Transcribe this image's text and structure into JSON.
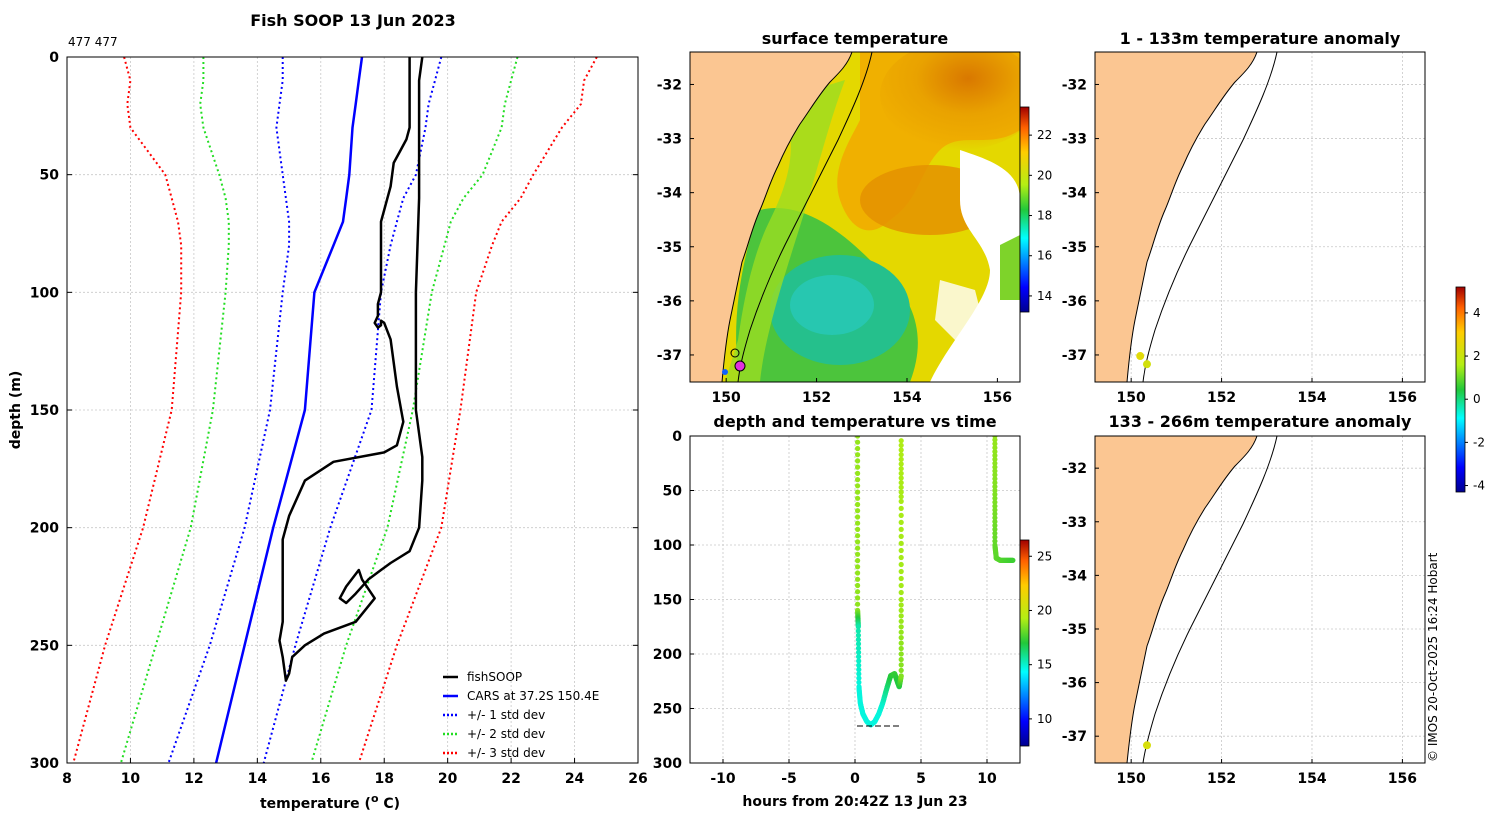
{
  "colors": {
    "fishsoop": "#000000",
    "cars": "#0000ff",
    "std1": "#0000ff",
    "std2": "#22dd22",
    "std3": "#ff0000",
    "land": "#fbc692"
  },
  "chart_data": [
    {
      "id": "profile",
      "type": "line",
      "title": "Fish SOOP 13 Jun 2023",
      "subtitle": "477 477",
      "xlabel": "temperature (",
      "xlabel_sup": "o",
      "xlabel_end": " C)",
      "ylabel": "depth (m)",
      "xlim": [
        8,
        26
      ],
      "ylim": [
        300,
        0
      ],
      "xticks": [
        8,
        10,
        12,
        14,
        16,
        18,
        20,
        22,
        24,
        26
      ],
      "yticks": [
        0,
        50,
        100,
        150,
        200,
        250,
        300
      ],
      "legend": [
        {
          "key": "fishsoop",
          "label": "fishSOOP",
          "style": "solid"
        },
        {
          "key": "cars",
          "label": "CARS at 37.2S 150.4E",
          "style": "solid"
        },
        {
          "key": "std1",
          "label": "+/- 1 std dev",
          "style": "dotted"
        },
        {
          "key": "std2",
          "label": "+/- 2 std dev",
          "style": "dotted"
        },
        {
          "key": "std3",
          "label": "+/- 3 std dev",
          "style": "dotted"
        }
      ],
      "depths": [
        0,
        10,
        20,
        30,
        50,
        60,
        70,
        80,
        100,
        150,
        200,
        250,
        300
      ],
      "series": [
        {
          "name": "CARS",
          "key": "cars",
          "style": "solid",
          "values": [
            17.3,
            17.2,
            17.1,
            17.0,
            16.9,
            16.8,
            16.7,
            16.4,
            15.8,
            15.5,
            14.5,
            13.6,
            12.7
          ]
        },
        {
          "name": "CARS +1 std",
          "key": "std1",
          "style": "dotted",
          "values": [
            19.8,
            19.6,
            19.4,
            19.3,
            19.0,
            18.6,
            18.4,
            18.2,
            17.9,
            17.6,
            16.3,
            15.2,
            14.2
          ]
        },
        {
          "name": "CARS -1 std",
          "key": "std1",
          "style": "dotted",
          "values": [
            14.8,
            14.8,
            14.7,
            14.6,
            14.8,
            14.9,
            15.0,
            15.0,
            14.8,
            14.4,
            13.6,
            12.5,
            11.2
          ]
        },
        {
          "name": "CARS +2 std",
          "key": "std2",
          "style": "dotted",
          "values": [
            22.2,
            22.0,
            21.8,
            21.7,
            21.1,
            20.5,
            20.1,
            19.9,
            19.5,
            18.9,
            18.1,
            16.8,
            15.7
          ]
        },
        {
          "name": "CARS -2 std",
          "key": "std2",
          "style": "dotted",
          "values": [
            12.3,
            12.3,
            12.2,
            12.3,
            12.8,
            13.0,
            13.1,
            13.1,
            13.0,
            12.6,
            11.9,
            10.8,
            9.7
          ]
        },
        {
          "name": "CARS +3 std",
          "key": "std3",
          "style": "dotted",
          "values": [
            24.7,
            24.3,
            24.2,
            23.6,
            22.7,
            22.3,
            21.7,
            21.4,
            20.9,
            20.4,
            19.8,
            18.4,
            17.2
          ]
        },
        {
          "name": "CARS -3 std",
          "key": "std3",
          "style": "dotted",
          "values": [
            9.8,
            10.0,
            9.9,
            10.0,
            11.1,
            11.3,
            11.5,
            11.6,
            11.6,
            11.3,
            10.4,
            9.2,
            8.2
          ]
        }
      ],
      "fishsoop": {
        "depth": [
          0,
          10,
          20,
          30,
          35,
          40,
          45,
          55,
          60,
          65,
          70,
          75,
          80,
          90,
          100,
          105,
          110,
          113,
          115,
          114,
          112,
          113,
          120,
          140,
          155,
          165,
          168,
          172,
          180,
          195,
          200,
          205,
          210,
          212,
          215,
          218,
          222,
          225,
          228,
          232,
          236,
          240,
          248,
          255,
          265,
          262,
          255,
          250,
          245,
          240,
          230,
          222,
          218,
          225,
          230,
          232,
          228,
          222,
          218,
          215,
          210,
          200,
          180,
          170,
          160,
          150,
          130,
          100,
          60,
          30,
          10,
          0
        ],
        "temp": [
          18.8,
          18.8,
          18.8,
          18.8,
          18.7,
          18.5,
          18.3,
          18.2,
          18.1,
          18.0,
          17.9,
          17.9,
          17.9,
          17.9,
          17.9,
          17.8,
          17.8,
          17.7,
          17.8,
          17.9,
          17.9,
          18.0,
          18.2,
          18.4,
          18.6,
          18.4,
          18.0,
          16.4,
          15.5,
          15.0,
          14.9,
          14.8,
          14.8,
          14.8,
          14.8,
          14.8,
          14.8,
          14.8,
          14.8,
          14.8,
          14.8,
          14.8,
          14.7,
          14.8,
          14.9,
          15.0,
          15.1,
          15.5,
          16.1,
          17.1,
          17.7,
          17.3,
          17.2,
          16.8,
          16.6,
          16.8,
          17.1,
          17.5,
          17.9,
          18.2,
          18.8,
          19.1,
          19.2,
          19.2,
          19.1,
          19.0,
          19.0,
          19.0,
          19.1,
          19.1,
          19.1,
          19.2
        ]
      }
    },
    {
      "id": "sst-map",
      "type": "heatmap",
      "title": "surface temperature",
      "xlim": [
        149.2,
        156.5
      ],
      "ylim": [
        -37.5,
        -31.4
      ],
      "xticks": [
        150,
        152,
        154,
        156
      ],
      "yticks": [
        -32,
        -33,
        -34,
        -35,
        -36,
        -37
      ],
      "colorbar_ticks": [
        14,
        16,
        18,
        20,
        22
      ],
      "colorbar_range": [
        13.2,
        23.4
      ]
    },
    {
      "id": "depth-time",
      "type": "scatter",
      "title": "depth and temperature vs time",
      "xlabel": "hours from 20:42Z 13 Jun 23",
      "xlim": [
        -12.5,
        12.5
      ],
      "ylim": [
        300,
        0
      ],
      "xticks": [
        -10,
        -5,
        0,
        5,
        10
      ],
      "yticks": [
        0,
        50,
        100,
        150,
        200,
        250,
        300
      ],
      "colorbar_ticks": [
        10,
        15,
        20,
        25
      ],
      "colorbar_range": [
        7.5,
        26.5
      ],
      "traces": [
        {
          "hours": [
            0.2,
            0.2,
            0.2,
            0.25,
            0.3,
            0.4,
            0.6,
            0.9,
            1.2,
            1.5,
            1.8,
            2.1,
            2.4,
            2.7,
            3.0,
            3.2,
            3.35,
            3.5,
            3.5,
            3.5,
            3.5
          ],
          "depth": [
            0,
            80,
            160,
            175,
            230,
            245,
            255,
            262,
            265,
            262,
            255,
            245,
            232,
            220,
            218,
            225,
            230,
            220,
            150,
            60,
            0
          ],
          "temp": [
            18.8,
            18.8,
            18.7,
            15.5,
            14.8,
            14.8,
            14.8,
            14.8,
            14.8,
            14.8,
            14.8,
            15.0,
            16.0,
            17.0,
            17.3,
            17.0,
            16.8,
            18.5,
            19.0,
            19.1,
            19.2
          ]
        },
        {
          "hours": [
            10.6,
            10.6,
            10.6,
            10.7,
            11.0,
            11.5,
            12.0
          ],
          "depth": [
            0,
            50,
            100,
            112,
            114,
            114,
            114
          ],
          "temp": [
            18.8,
            18.5,
            18.0,
            17.9,
            17.8,
            17.6,
            17.4
          ]
        }
      ]
    },
    {
      "id": "anom-1-133",
      "type": "scatter",
      "title": "1 - 133m temperature anomaly",
      "xlim": [
        149.2,
        156.5
      ],
      "ylim": [
        -37.5,
        -31.4
      ],
      "xticks": [
        150,
        152,
        154,
        156
      ],
      "yticks": [
        -32,
        -33,
        -34,
        -35,
        -36,
        -37
      ],
      "points": [
        {
          "lon": 150.2,
          "lat": -37.02,
          "anomaly": 2.5
        },
        {
          "lon": 150.35,
          "lat": -37.17,
          "anomaly": 2.2
        }
      ]
    },
    {
      "id": "anom-133-266",
      "type": "scatter",
      "title": "133 - 266m temperature anomaly",
      "xlim": [
        149.2,
        156.5
      ],
      "ylim": [
        -37.5,
        -31.4
      ],
      "xticks": [
        150,
        152,
        154,
        156
      ],
      "yticks": [
        -32,
        -33,
        -34,
        -35,
        -36,
        -37
      ],
      "points": [
        {
          "lon": 150.35,
          "lat": -37.17,
          "anomaly": 2.3
        }
      ],
      "colorbar_ticks": [
        -4,
        -2,
        0,
        2,
        4
      ],
      "colorbar_range": [
        -4.3,
        5.2
      ]
    }
  ],
  "footer": {
    "credit": "© IMOS 20-Oct-2025 16:24 Hobart"
  }
}
